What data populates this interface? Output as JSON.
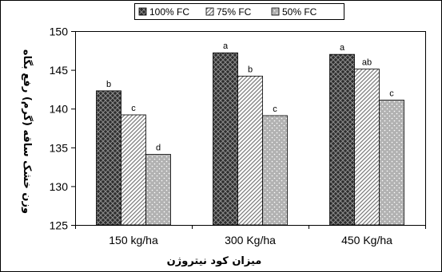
{
  "chart_data": {
    "type": "bar",
    "categories": [
      "150 kg/ha",
      "300 Kg/ha",
      "450 Kg/ha"
    ],
    "series": [
      {
        "name": "100% FC",
        "values": [
          142.3,
          147.2,
          147.0
        ],
        "labels": [
          "b",
          "a",
          "a"
        ],
        "pattern": "crosshatch",
        "color": "#3a3a3a"
      },
      {
        "name": "75% FC",
        "values": [
          139.2,
          144.2,
          145.1
        ],
        "labels": [
          "c",
          "b",
          "ab"
        ],
        "pattern": "diagonal",
        "color": "#9a9a9a"
      },
      {
        "name": "50% FC",
        "values": [
          134.1,
          139.1,
          141.1
        ],
        "labels": [
          "d",
          "c",
          "c"
        ],
        "pattern": "dotted",
        "color": "#b4b4b4"
      }
    ],
    "xlabel": "میزان کود نیتروژن",
    "ylabel": "وزن خشک ساقه (گرم) رفع بگاه",
    "ylim": [
      125,
      150
    ],
    "yticks": [
      125,
      130,
      135,
      140,
      145,
      150
    ],
    "grid": false,
    "legend_position": "top"
  }
}
